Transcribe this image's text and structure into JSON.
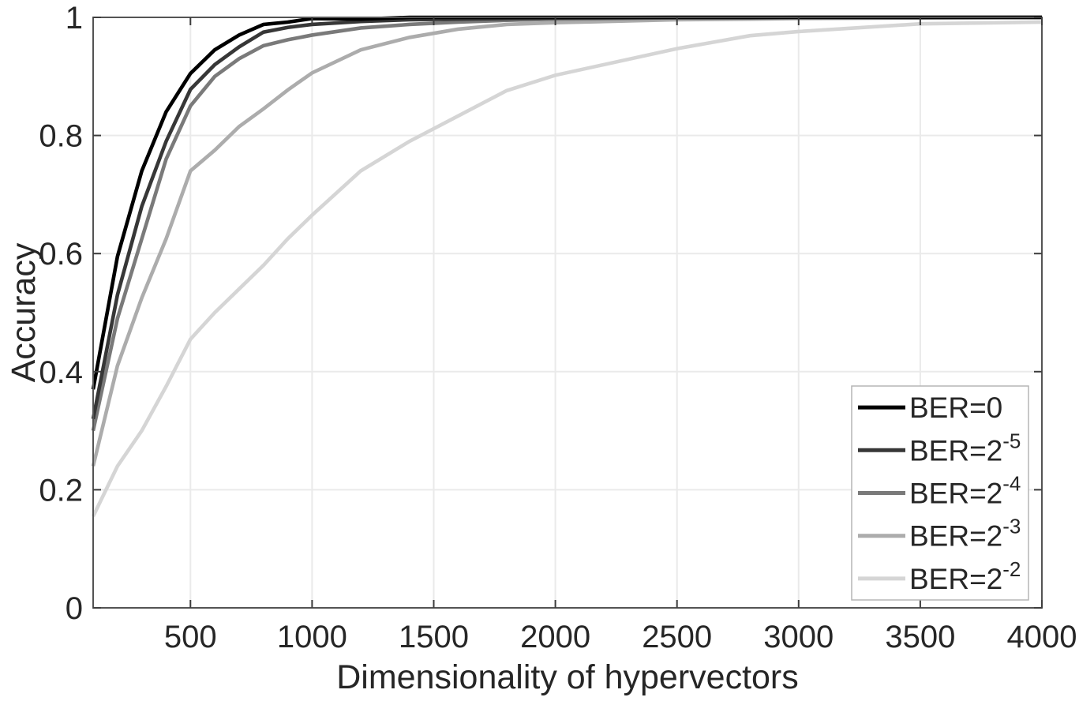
{
  "figure": {
    "background": "#ffffff",
    "text_color": "#262626",
    "frame_color": "#545454",
    "tick_color": "#3d3d3d",
    "grid_color": "#eaeaea",
    "legend_border_color": "#b5b5b5",
    "legend_background": "#ffffff"
  },
  "legend": {
    "position": "bottom-right",
    "entries": [
      {
        "base": "BER=0",
        "sup": ""
      },
      {
        "base": "BER=2",
        "sup": "-5"
      },
      {
        "base": "BER=2",
        "sup": "-4"
      },
      {
        "base": "BER=2",
        "sup": "-3"
      },
      {
        "base": "BER=2",
        "sup": "-2"
      }
    ]
  },
  "chart_data": {
    "type": "line",
    "title": "",
    "xlabel": "Dimensionality of hypervectors",
    "ylabel": "Accuracy",
    "xlim": [
      100,
      4000
    ],
    "ylim": [
      0,
      1
    ],
    "grid": true,
    "legend_position": "bottom-right",
    "x_ticks": [
      500,
      1000,
      1500,
      2000,
      2500,
      3000,
      3500,
      4000
    ],
    "x_tick_labels": [
      "500",
      "1000",
      "1500",
      "2000",
      "2500",
      "3000",
      "3500",
      "4000"
    ],
    "y_ticks": [
      0,
      0.2,
      0.4,
      0.6,
      0.8,
      1
    ],
    "y_tick_labels": [
      "0",
      "0.2",
      "0.4",
      "0.6",
      "0.8",
      "1"
    ],
    "x": [
      100,
      200,
      300,
      400,
      500,
      600,
      700,
      800,
      900,
      1000,
      1200,
      1400,
      1600,
      1800,
      2000,
      2500,
      2800,
      3000,
      3500,
      4000
    ],
    "series": [
      {
        "name": "BER=0",
        "color": "#000000",
        "values": [
          0.37,
          0.595,
          0.74,
          0.84,
          0.905,
          0.945,
          0.97,
          0.988,
          0.992,
          0.998,
          0.997,
          1.0,
          1.0,
          1.0,
          1.0,
          1.0,
          1.0,
          1.0,
          1.0,
          1.0
        ]
      },
      {
        "name": "BER=2^-5",
        "color": "#373737",
        "values": [
          0.32,
          0.53,
          0.68,
          0.79,
          0.878,
          0.92,
          0.95,
          0.975,
          0.983,
          0.988,
          0.993,
          0.996,
          0.997,
          0.998,
          0.999,
          1.0,
          1.0,
          1.0,
          1.0,
          1.0
        ]
      },
      {
        "name": "BER=2^-4",
        "color": "#7a7a7a",
        "values": [
          0.3,
          0.49,
          0.625,
          0.76,
          0.85,
          0.9,
          0.93,
          0.952,
          0.962,
          0.97,
          0.982,
          0.988,
          0.992,
          0.995,
          0.997,
          0.999,
          0.999,
          1.0,
          1.0,
          1.0
        ]
      },
      {
        "name": "BER=2^-3",
        "color": "#acacac",
        "values": [
          0.24,
          0.41,
          0.525,
          0.625,
          0.74,
          0.775,
          0.815,
          0.845,
          0.877,
          0.906,
          0.945,
          0.966,
          0.98,
          0.988,
          0.991,
          0.996,
          0.997,
          0.998,
          0.999,
          1.0
        ]
      },
      {
        "name": "BER=2^-2",
        "color": "#d5d5d5",
        "values": [
          0.155,
          0.24,
          0.3,
          0.375,
          0.455,
          0.5,
          0.54,
          0.58,
          0.625,
          0.665,
          0.74,
          0.79,
          0.833,
          0.876,
          0.902,
          0.947,
          0.969,
          0.976,
          0.989,
          0.992
        ]
      }
    ]
  }
}
